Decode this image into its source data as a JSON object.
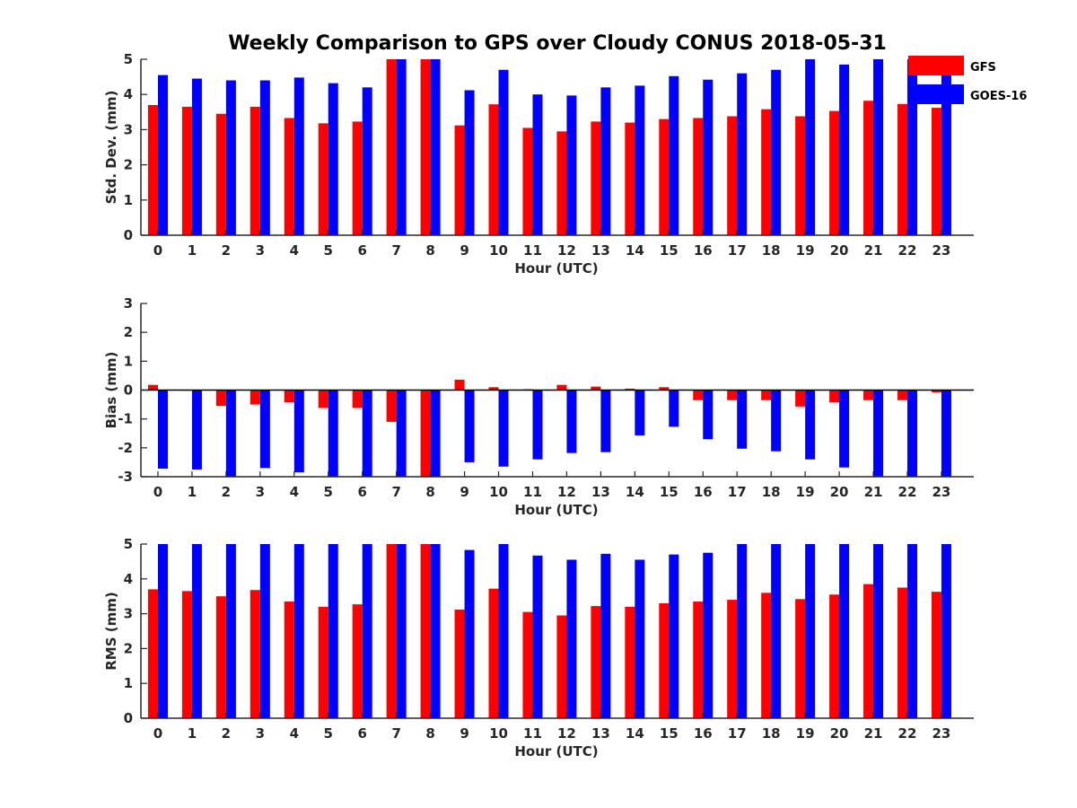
{
  "title": "Weekly Comparison to GPS over Cloudy CONUS 2018-05-31",
  "colors": {
    "gfs": "#ff0000",
    "goes16": "#0000ff",
    "axis": "#262626"
  },
  "legend": [
    {
      "name": "GFS",
      "color": "#ff0000"
    },
    {
      "name": "GOES-16",
      "color": "#0000ff"
    }
  ],
  "chart_data": [
    {
      "type": "bar",
      "title": "Weekly Comparison to GPS over Cloudy CONUS 2018-05-31",
      "xlabel": "Hour (UTC)",
      "ylabel": "Std. Dev. (mm)",
      "categories": [
        "0",
        "1",
        "2",
        "3",
        "4",
        "5",
        "6",
        "7",
        "8",
        "9",
        "10",
        "11",
        "12",
        "13",
        "14",
        "15",
        "16",
        "17",
        "18",
        "19",
        "20",
        "21",
        "22",
        "23"
      ],
      "ylim": [
        0,
        5
      ],
      "yticks": [
        "0",
        "1",
        "2",
        "3",
        "4",
        "5"
      ],
      "legend_position": "top-right",
      "grid": false,
      "series": [
        {
          "name": "GFS",
          "color": "#ff0000",
          "values": [
            3.7,
            3.65,
            3.45,
            3.65,
            3.33,
            3.18,
            3.23,
            5,
            5,
            3.12,
            3.72,
            3.05,
            2.95,
            3.23,
            3.2,
            3.3,
            3.33,
            3.38,
            3.58,
            3.38,
            3.53,
            3.82,
            3.73,
            3.62
          ]
        },
        {
          "name": "GOES-16",
          "color": "#0000ff",
          "values": [
            4.55,
            4.45,
            4.4,
            4.4,
            4.48,
            4.32,
            4.2,
            5,
            5,
            4.12,
            4.7,
            4.0,
            3.97,
            4.2,
            4.25,
            4.52,
            4.42,
            4.6,
            4.7,
            5,
            4.85,
            5,
            5,
            4.85
          ]
        }
      ]
    },
    {
      "type": "bar",
      "xlabel": "Hour (UTC)",
      "ylabel": "Bias (mm)",
      "categories": [
        "0",
        "1",
        "2",
        "3",
        "4",
        "5",
        "6",
        "7",
        "8",
        "9",
        "10",
        "11",
        "12",
        "13",
        "14",
        "15",
        "16",
        "17",
        "18",
        "19",
        "20",
        "21",
        "22",
        "23"
      ],
      "ylim": [
        -3,
        3
      ],
      "yticks": [
        "-3",
        "-2",
        "-1",
        "0",
        "1",
        "2",
        "3"
      ],
      "zero_line": true,
      "grid": false,
      "series": [
        {
          "name": "GFS",
          "color": "#ff0000",
          "values": [
            0.18,
            -0.02,
            -0.55,
            -0.5,
            -0.43,
            -0.62,
            -0.62,
            -1.1,
            -3,
            0.36,
            0.1,
            0.03,
            0.18,
            0.12,
            0.05,
            0.1,
            -0.35,
            -0.35,
            -0.35,
            -0.57,
            -0.43,
            -0.35,
            -0.35,
            -0.08
          ]
        },
        {
          "name": "GOES-16",
          "color": "#0000ff",
          "values": [
            -2.72,
            -2.75,
            -3,
            -2.7,
            -2.85,
            -3,
            -3,
            -3,
            -3,
            -2.5,
            -2.65,
            -2.4,
            -2.18,
            -2.15,
            -1.57,
            -1.27,
            -1.7,
            -2.03,
            -2.12,
            -2.4,
            -2.68,
            -3,
            -3,
            -3
          ]
        }
      ]
    },
    {
      "type": "bar",
      "xlabel": "Hour (UTC)",
      "ylabel": "RMS (mm)",
      "categories": [
        "0",
        "1",
        "2",
        "3",
        "4",
        "5",
        "6",
        "7",
        "8",
        "9",
        "10",
        "11",
        "12",
        "13",
        "14",
        "15",
        "16",
        "17",
        "18",
        "19",
        "20",
        "21",
        "22",
        "23"
      ],
      "ylim": [
        0,
        5
      ],
      "yticks": [
        "0",
        "1",
        "2",
        "3",
        "4",
        "5"
      ],
      "grid": false,
      "series": [
        {
          "name": "GFS",
          "color": "#ff0000",
          "values": [
            3.7,
            3.65,
            3.5,
            3.68,
            3.35,
            3.2,
            3.27,
            5,
            5,
            3.12,
            3.72,
            3.05,
            2.95,
            3.22,
            3.2,
            3.3,
            3.35,
            3.4,
            3.6,
            3.42,
            3.55,
            3.85,
            3.75,
            3.63
          ]
        },
        {
          "name": "GOES-16",
          "color": "#0000ff",
          "values": [
            5,
            5,
            5,
            5,
            5,
            5,
            5,
            5,
            5,
            4.83,
            5,
            4.67,
            4.55,
            4.72,
            4.55,
            4.7,
            4.75,
            5,
            5,
            5,
            5,
            5,
            5,
            5
          ]
        }
      ]
    }
  ]
}
